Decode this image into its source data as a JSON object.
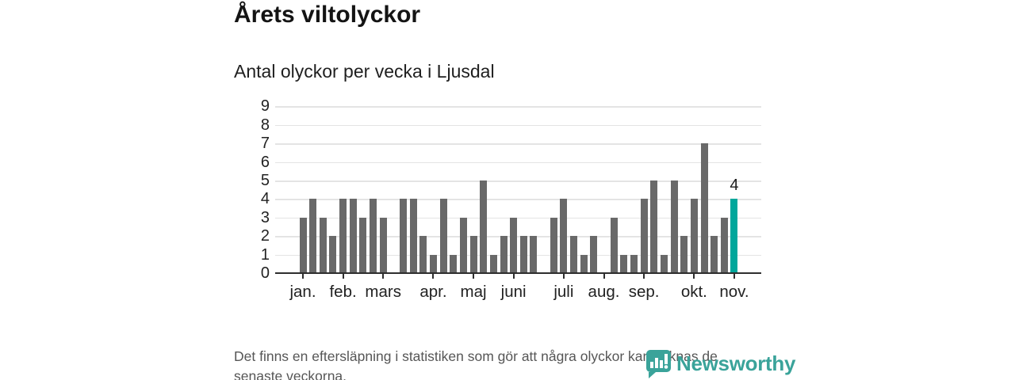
{
  "title": "Årets viltolyckor",
  "subtitle": "Antal olyckor per vecka i Ljusdal",
  "footer": {
    "lines": [
      "Det finns en eftersläpning i statistiken som gör att några olyckor kan saknas de",
      "senaste veckorna."
    ]
  },
  "logo": {
    "name": "Newsworthy"
  },
  "colors": {
    "bar": "#696969",
    "highlight": "#00a79b",
    "axis": "#2e2e2e",
    "grid": "#e4e4e4",
    "text": "#1f1f1f",
    "muted": "#565656",
    "logo": "#3aa39a"
  },
  "chart_data": {
    "type": "bar",
    "title": "Årets viltolyckor",
    "subtitle": "Antal olyckor per vecka i Ljusdal",
    "x_unit": "vecka (week of year)",
    "x": [
      1,
      2,
      3,
      4,
      5,
      6,
      7,
      8,
      9,
      10,
      11,
      12,
      13,
      14,
      15,
      16,
      17,
      18,
      19,
      20,
      21,
      22,
      23,
      24,
      25,
      26,
      27,
      28,
      29,
      30,
      31,
      32,
      33,
      34,
      35,
      36,
      37,
      38,
      39,
      40,
      41,
      42,
      43,
      44
    ],
    "values": [
      3,
      4,
      3,
      2,
      4,
      4,
      3,
      4,
      3,
      0,
      4,
      4,
      2,
      1,
      4,
      1,
      3,
      2,
      5,
      1,
      2,
      3,
      2,
      2,
      0,
      3,
      4,
      2,
      1,
      2,
      0,
      3,
      1,
      1,
      4,
      5,
      1,
      5,
      2,
      4,
      7,
      2,
      3,
      4
    ],
    "highlight": {
      "index": 43,
      "week": 44,
      "value": 4,
      "label": "4"
    },
    "ylim": [
      0,
      9
    ],
    "yticks": [
      0,
      1,
      2,
      3,
      4,
      5,
      6,
      7,
      8,
      9
    ],
    "xticks": [
      {
        "week": 1,
        "label": "jan."
      },
      {
        "week": 5,
        "label": "feb."
      },
      {
        "week": 9,
        "label": "mars"
      },
      {
        "week": 14,
        "label": "apr."
      },
      {
        "week": 18,
        "label": "maj"
      },
      {
        "week": 22,
        "label": "juni"
      },
      {
        "week": 27,
        "label": "juli"
      },
      {
        "week": 31,
        "label": "aug."
      },
      {
        "week": 35,
        "label": "sep."
      },
      {
        "week": 40,
        "label": "okt."
      },
      {
        "week": 44,
        "label": "nov."
      }
    ],
    "grid": true,
    "legend": false
  }
}
